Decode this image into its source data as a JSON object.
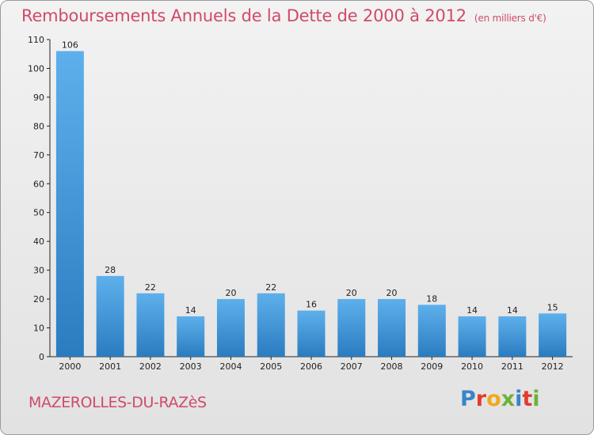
{
  "title": "Remboursements Annuels de la Dette de 2000 à 2012",
  "subtitle": "(en milliers d'€)",
  "commune": "MAZEROLLES-DU-RAZèS",
  "logo": {
    "letters": [
      "P",
      "r",
      "o",
      "x",
      "i",
      "t",
      "i"
    ],
    "colors": [
      "#3a84c9",
      "#e23b2e",
      "#f2a81d",
      "#6bb33a",
      "#3a84c9",
      "#e23b2e",
      "#6bb33a"
    ]
  },
  "colors": {
    "bar_light": "#5eb0ec",
    "bar_dark": "#2a7cc0",
    "text_accent": "#d04a6a"
  },
  "chart_data": {
    "type": "bar",
    "title": "Remboursements Annuels de la Dette de 2000 à 2012",
    "subtitle": "(en milliers d'€)",
    "categories": [
      "2000",
      "2001",
      "2002",
      "2003",
      "2004",
      "2005",
      "2006",
      "2007",
      "2008",
      "2009",
      "2010",
      "2011",
      "2012"
    ],
    "values": [
      106,
      28,
      22,
      14,
      20,
      22,
      16,
      20,
      20,
      18,
      14,
      14,
      15
    ],
    "data_labels": [
      "106",
      "28",
      "22",
      "14",
      "20",
      "22",
      "16",
      "20",
      "20",
      "18",
      "14",
      "14",
      "15"
    ],
    "y_ticks": [
      0,
      10,
      20,
      30,
      40,
      50,
      60,
      70,
      80,
      90,
      100,
      110
    ],
    "ylim": [
      0,
      110
    ],
    "xlabel": "",
    "ylabel": "",
    "grid": false,
    "legend": "none"
  }
}
